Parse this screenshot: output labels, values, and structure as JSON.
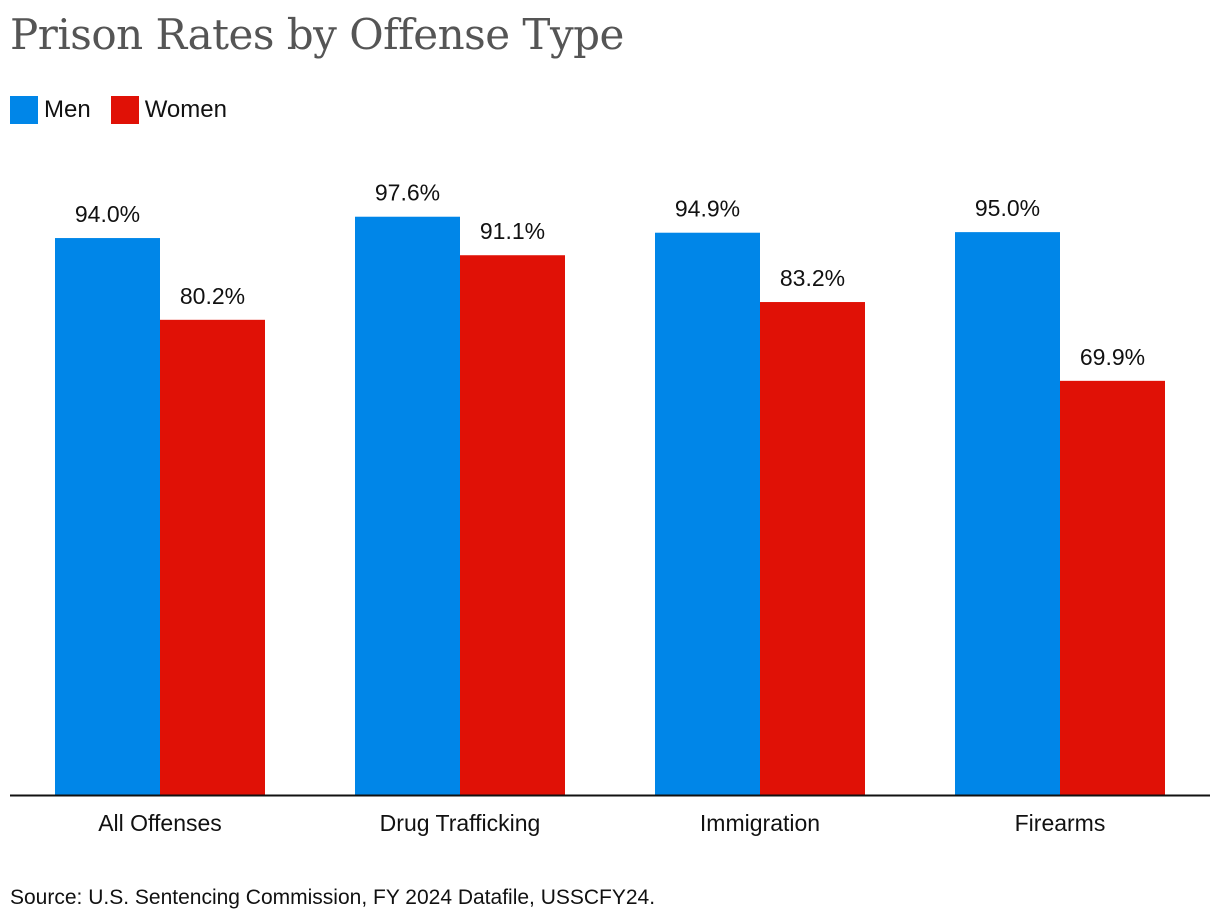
{
  "chart_data": {
    "type": "bar",
    "title": "Prison Rates by Offense Type",
    "categories": [
      "All Offenses",
      "Drug Trafficking",
      "Immigration",
      "Firearms"
    ],
    "series": [
      {
        "name": "Men",
        "values": [
          94.0,
          97.6,
          94.9,
          95.0
        ],
        "labels": [
          "94.0%",
          "97.6%",
          "94.9%",
          "95.0%"
        ],
        "color": "#0086E8"
      },
      {
        "name": "Women",
        "values": [
          80.2,
          91.1,
          83.2,
          69.9
        ],
        "labels": [
          "80.2%",
          "91.1%",
          "83.2%",
          "69.9%"
        ],
        "color": "#E01106"
      }
    ],
    "xlabel": "",
    "ylabel": "",
    "ylim": [
      0,
      100
    ],
    "grid": false,
    "legend": "top-left"
  },
  "source": "Source: U.S. Sentencing Commission, FY 2024 Datafile, USSCFY24."
}
